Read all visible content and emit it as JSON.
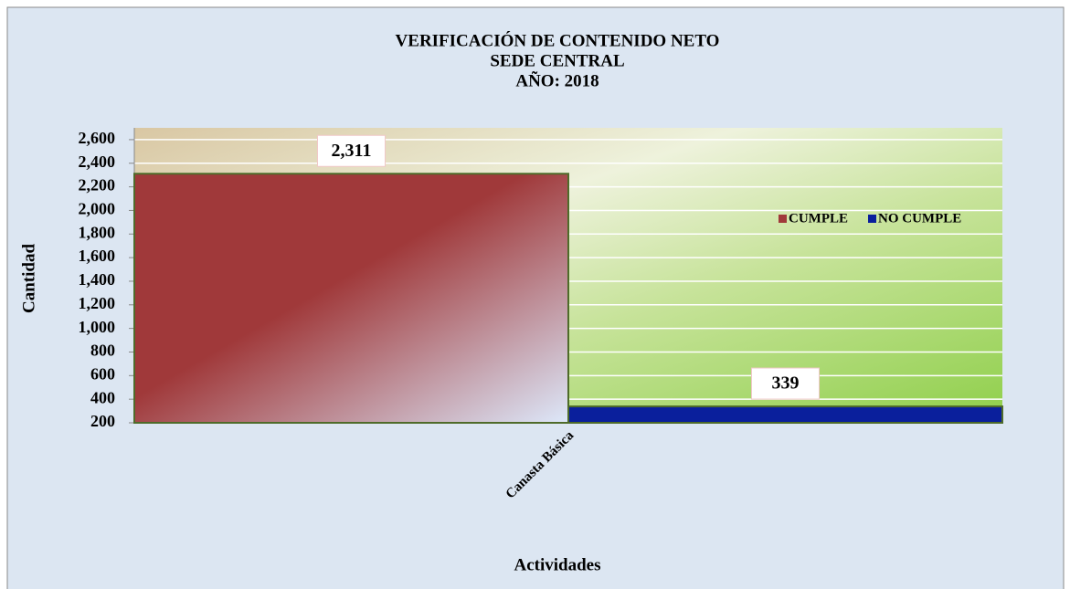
{
  "chart_data": {
    "type": "bar",
    "title": [
      "VERIFICACIÓN DE CONTENIDO NETO",
      "SEDE CENTRAL",
      "AÑO: 2018"
    ],
    "categories": [
      "Canasta Básica"
    ],
    "series": [
      {
        "name": "CUMPLE",
        "color": "#a0393a",
        "values": [
          2311
        ],
        "value_labels": [
          "2,311"
        ]
      },
      {
        "name": "NO CUMPLE",
        "color": "#0a1f9c",
        "values": [
          339
        ],
        "value_labels": [
          "339"
        ]
      }
    ],
    "y_label": "Cantidad",
    "x_label": "Actividades",
    "ylim": [
      200,
      2700
    ],
    "yticks": [
      {
        "value": 200,
        "label": "200"
      },
      {
        "value": 400,
        "label": "400"
      },
      {
        "value": 600,
        "label": "600"
      },
      {
        "value": 800,
        "label": "800"
      },
      {
        "value": 1000,
        "label": "1,000"
      },
      {
        "value": 1200,
        "label": "1,200"
      },
      {
        "value": 1400,
        "label": "1,400"
      },
      {
        "value": 1600,
        "label": "1,600"
      },
      {
        "value": 1800,
        "label": "1,800"
      },
      {
        "value": 2000,
        "label": "2,000"
      },
      {
        "value": 2200,
        "label": "2,200"
      },
      {
        "value": 2400,
        "label": "2,400"
      },
      {
        "value": 2600,
        "label": "2,600"
      }
    ],
    "grid": true,
    "legend": "right"
  }
}
